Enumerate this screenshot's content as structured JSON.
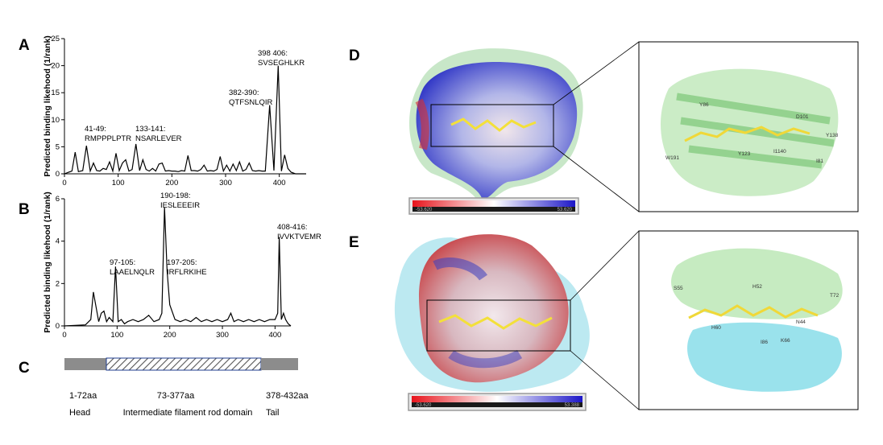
{
  "panels": {
    "a": {
      "letter": "A",
      "ylabel": "Predicted binding likehood (1/rank)",
      "annotations": [
        {
          "range": "41-49:",
          "seq": "RMPPPLPTR"
        },
        {
          "range": "133-141:",
          "seq": "NSARLEVER"
        },
        {
          "range": "382-390:",
          "seq": "QTFSNLQIR"
        },
        {
          "range": "398 406:",
          "seq": "SVSEGHLKR"
        }
      ]
    },
    "b": {
      "letter": "B",
      "ylabel": "Predicted binding likehood (1/rank)",
      "annotations": [
        {
          "range": "97-105:",
          "seq": "LAAELNQLR"
        },
        {
          "range": "190-198:",
          "seq": "IESLEEEIR"
        },
        {
          "range": "197-205:",
          "seq": "IRFLRKIHE"
        },
        {
          "range": "408-416:",
          "seq": "IVVKTVEMR"
        }
      ]
    },
    "c": {
      "letter": "C",
      "domains": [
        {
          "range": "1-72aa",
          "name": "Head"
        },
        {
          "range": "73-377aa",
          "name": "Intermediate filament rod domain"
        },
        {
          "range": "378-432aa",
          "name": "Tail"
        }
      ]
    },
    "d": {
      "letter": "D",
      "scale_min": "-53.620",
      "scale_max": "53.620",
      "residues": [
        "Y86",
        "W191",
        "Y123",
        "I1140",
        "D101",
        "Y138",
        "I81"
      ]
    },
    "e": {
      "letter": "E",
      "scale_min": "-53.620",
      "scale_max": "53.388",
      "residues": [
        "S55",
        "H52",
        "T72",
        "H60",
        "I86",
        "K66",
        "N44"
      ]
    }
  },
  "chart_data": [
    {
      "type": "line",
      "panel": "A",
      "ylabel": "Predicted binding likehood (1/rank)",
      "xlim": [
        0,
        450
      ],
      "ylim": [
        0,
        25
      ],
      "xticks": [
        0,
        100,
        200,
        300,
        400
      ],
      "yticks": [
        0,
        5,
        10,
        15,
        20,
        25
      ],
      "x": [
        0,
        8,
        14,
        20,
        26,
        34,
        41,
        48,
        54,
        60,
        66,
        72,
        78,
        84,
        90,
        96,
        102,
        108,
        114,
        120,
        126,
        133,
        140,
        146,
        152,
        158,
        164,
        170,
        176,
        182,
        188,
        194,
        200,
        206,
        212,
        218,
        224,
        230,
        236,
        242,
        248,
        254,
        260,
        266,
        272,
        278,
        284,
        290,
        296,
        302,
        308,
        314,
        320,
        326,
        332,
        338,
        344,
        350,
        356,
        362,
        368,
        374,
        382,
        390,
        398,
        404,
        410,
        416,
        422,
        430,
        440,
        450
      ],
      "y": [
        0,
        0.3,
        0.5,
        4.0,
        0.4,
        0.6,
        5.2,
        0.5,
        2.0,
        0.6,
        0.5,
        1.0,
        0.8,
        2.2,
        0.5,
        3.8,
        0.6,
        2.0,
        2.6,
        0.5,
        0.8,
        5.5,
        0.6,
        2.6,
        0.8,
        0.5,
        1.0,
        0.5,
        1.8,
        2.0,
        0.5,
        0.6,
        0.5,
        0.5,
        0.4,
        0.6,
        0.5,
        3.4,
        0.6,
        0.6,
        0.5,
        0.8,
        1.6,
        0.5,
        0.6,
        0.5,
        0.8,
        3.2,
        0.5,
        1.6,
        0.5,
        1.8,
        0.6,
        2.2,
        0.5,
        0.8,
        2.0,
        0.6,
        0.5,
        0.6,
        0.5,
        0.5,
        12.7,
        0.6,
        20.0,
        0.5,
        3.5,
        1.0,
        0.3,
        0,
        0,
        0
      ]
    },
    {
      "type": "line",
      "panel": "B",
      "ylabel": "Predicted binding likehood (1/rank)",
      "xlim": [
        0,
        430
      ],
      "ylim": [
        0,
        6
      ],
      "xticks": [
        0,
        100,
        200,
        300,
        400
      ],
      "yticks": [
        0,
        2,
        4,
        6
      ],
      "x": [
        0,
        40,
        50,
        55,
        60,
        65,
        70,
        75,
        80,
        85,
        92,
        97,
        102,
        108,
        114,
        120,
        130,
        140,
        150,
        160,
        170,
        180,
        185,
        190,
        195,
        200,
        210,
        220,
        230,
        240,
        250,
        260,
        270,
        280,
        290,
        300,
        310,
        316,
        322,
        330,
        340,
        350,
        360,
        370,
        380,
        390,
        400,
        405,
        408,
        412,
        416,
        420,
        425,
        430
      ],
      "y": [
        0,
        0.05,
        0.3,
        1.6,
        0.9,
        0.2,
        0.6,
        0.7,
        0.2,
        0.4,
        0.2,
        2.8,
        0.2,
        0.3,
        0.1,
        0.2,
        0.3,
        0.2,
        0.3,
        0.5,
        0.2,
        0.3,
        0.6,
        5.6,
        2.6,
        1.0,
        0.3,
        0.2,
        0.3,
        0.2,
        0.4,
        0.2,
        0.3,
        0.2,
        0.3,
        0.2,
        0.3,
        0.6,
        0.2,
        0.3,
        0.2,
        0.3,
        0.2,
        0.3,
        0.2,
        0.3,
        0.3,
        0.6,
        4.2,
        0.3,
        0.6,
        0.3,
        0.1,
        0
      ]
    }
  ]
}
